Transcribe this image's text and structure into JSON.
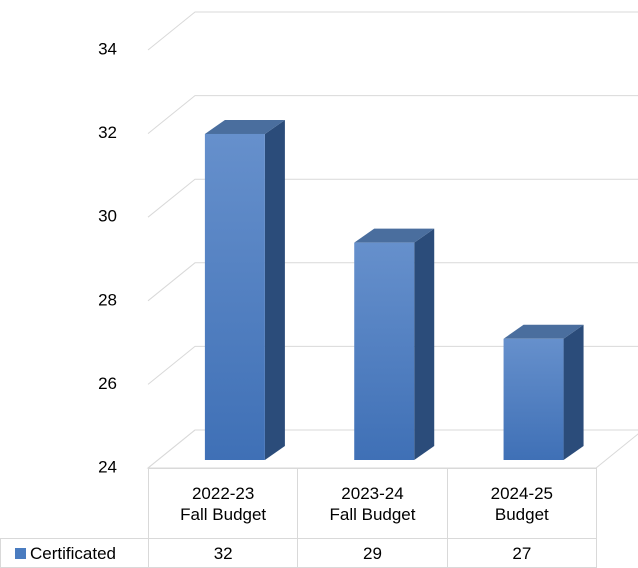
{
  "chart_data": {
    "type": "bar3d",
    "categories": [
      "2022-23\nFall Budget",
      "2023-24\nFall Budget",
      "2024-25\nBudget"
    ],
    "series": [
      {
        "name": "Certificated",
        "color": "#4a7cc0",
        "values": [
          31.8,
          29.2,
          26.9
        ],
        "value_labels": [
          "32",
          "29",
          "27"
        ]
      }
    ],
    "ylim": [
      24,
      34
    ],
    "yticks": [
      24,
      26,
      28,
      30,
      32,
      34
    ],
    "grid": true
  }
}
